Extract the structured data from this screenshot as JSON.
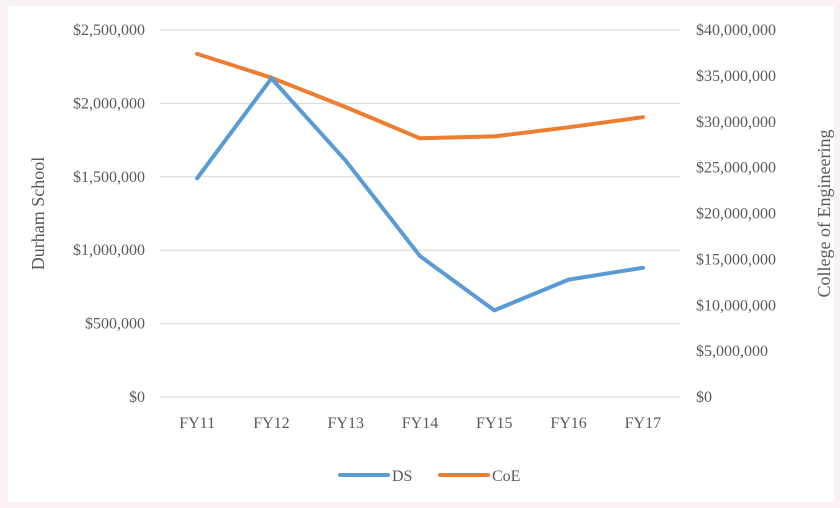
{
  "chart_data": {
    "type": "line",
    "categories": [
      "FY11",
      "FY12",
      "FY13",
      "FY14",
      "FY15",
      "FY16",
      "FY17"
    ],
    "series": [
      {
        "name": "DS",
        "axis": "left",
        "color": "#5b9bd5",
        "values": [
          1490000,
          2170000,
          1610000,
          960000,
          590000,
          800000,
          880000
        ]
      },
      {
        "name": "CoE",
        "axis": "right",
        "color": "#ed7d31",
        "values": [
          37400000,
          34800000,
          31600000,
          28200000,
          28400000,
          29400000,
          30500000
        ]
      }
    ],
    "y_left": {
      "label": "Durham School",
      "range": [
        0,
        2500000
      ],
      "ticks": [
        "$0",
        "$500,000",
        "$1,000,000",
        "$1,500,000",
        "$2,000,000",
        "$2,500,000"
      ]
    },
    "y_right": {
      "label": "College of Engineering",
      "range": [
        0,
        40000000
      ],
      "ticks": [
        "$0",
        "$5,000,000",
        "$10,000,000",
        "$15,000,000",
        "$20,000,000",
        "$25,000,000",
        "$30,000,000",
        "$35,000,000",
        "$40,000,000"
      ]
    },
    "grid": true,
    "legend": "bottom",
    "legend_entries": [
      "DS",
      "CoE"
    ]
  }
}
